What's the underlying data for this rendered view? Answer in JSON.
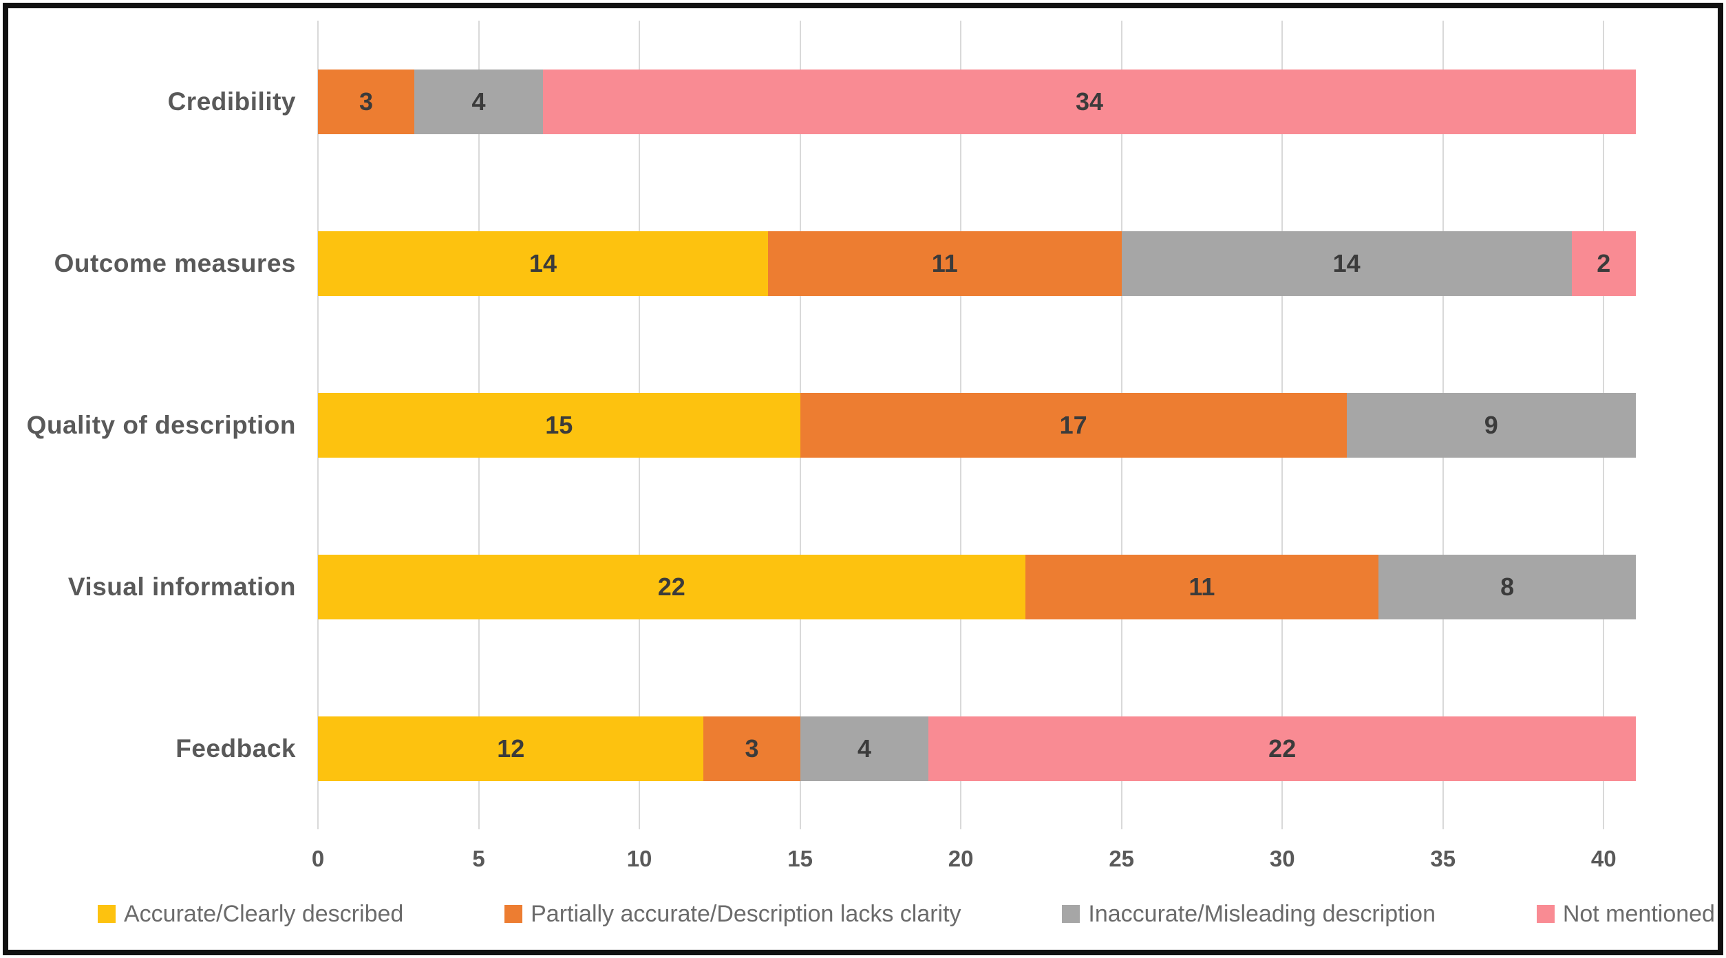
{
  "chart_data": {
    "type": "bar",
    "variant": "horizontal-stacked",
    "title": "",
    "xlabel": "",
    "ylabel": "",
    "categories": [
      "Credibility",
      "Outcome measures",
      "Quality of description",
      "Visual information",
      "Feedback"
    ],
    "series": [
      {
        "name": "Accurate/Clearly described",
        "color": "#FDC20F",
        "values": [
          0,
          14,
          15,
          22,
          12
        ]
      },
      {
        "name": "Partially accurate/Description lacks clarity",
        "color": "#ED7D31",
        "values": [
          3,
          11,
          17,
          11,
          3
        ]
      },
      {
        "name": "Inaccurate/Misleading description",
        "color": "#A6A6A6",
        "values": [
          4,
          14,
          9,
          8,
          4
        ]
      },
      {
        "name": "Not mentioned",
        "color": "#F98B93",
        "values": [
          34,
          2,
          0,
          0,
          22
        ]
      }
    ],
    "totals_per_category": [
      41,
      41,
      41,
      41,
      41
    ],
    "x_ticks": [
      "0",
      "5",
      "10",
      "15",
      "20",
      "25",
      "30",
      "35",
      "40"
    ],
    "x_max": 41,
    "grid": true,
    "legend_position": "bottom"
  },
  "colors": {
    "frame_border": "#111111",
    "gridline": "#D9D9D9",
    "category_label": "#595959",
    "tick_label": "#595959",
    "value_label": "#3B3B3B",
    "legend_text": "#6B6B6B",
    "background": "#FFFFFF"
  }
}
